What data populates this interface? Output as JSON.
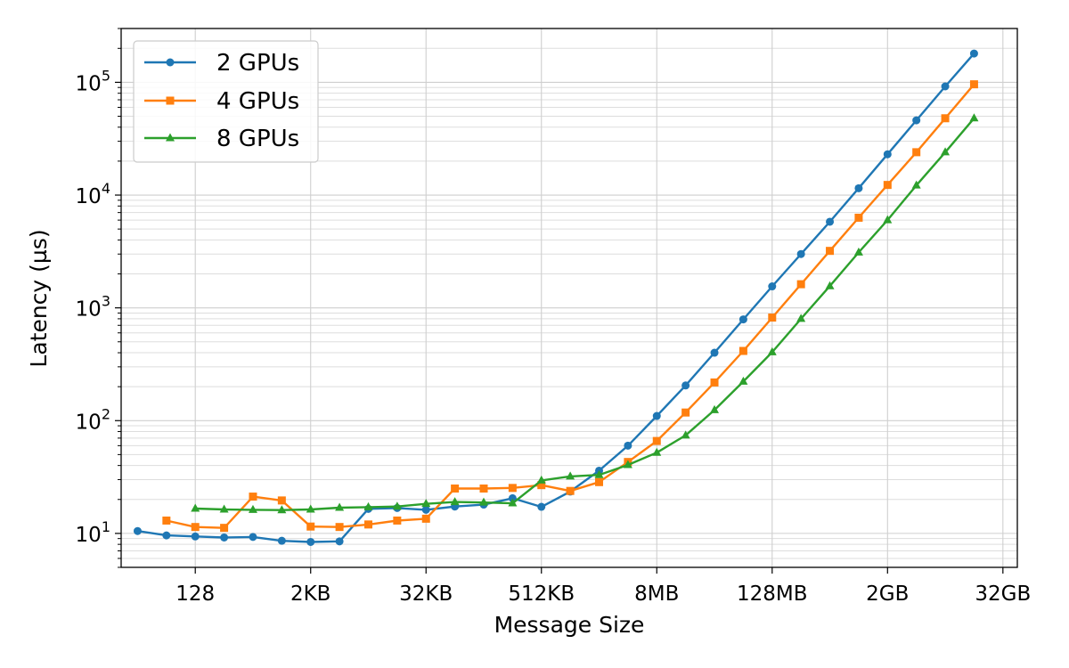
{
  "chart_data": {
    "type": "line",
    "title": "",
    "xlabel": "Message Size",
    "ylabel": "Latency (µs)",
    "x_scale": "log2",
    "y_scale": "log10",
    "x_tick_labels": [
      "128",
      "2KB",
      "32KB",
      "512KB",
      "8MB",
      "128MB",
      "2GB",
      "32GB"
    ],
    "y_tick_labels": [
      {
        "base": "10",
        "exp": "1"
      },
      {
        "base": "10",
        "exp": "2"
      },
      {
        "base": "10",
        "exp": "3"
      },
      {
        "base": "10",
        "exp": "4"
      },
      {
        "base": "10",
        "exp": "5"
      }
    ],
    "ylim": [
      5,
      300000
    ],
    "grid": true,
    "legend_position": "top-left",
    "series": [
      {
        "name": "2 GPUs",
        "color": "#1f77b4",
        "marker": "circle",
        "x": [
          32,
          64,
          128,
          256,
          512,
          1024,
          2048,
          4096,
          8192,
          16384,
          32768,
          65536,
          131072,
          262144,
          524288,
          1048576,
          2097152,
          4194304,
          8388608,
          16777216,
          33554432,
          67108864,
          134217728,
          268435456,
          536870912,
          1073741824,
          2147483648,
          4294967296,
          8589934592,
          17179869184
        ],
        "y": [
          10.5,
          9.6,
          9.4,
          9.2,
          9.3,
          8.6,
          8.4,
          8.5,
          16.5,
          16.8,
          16.2,
          17.3,
          18.0,
          20.5,
          17.2,
          23.5,
          36,
          60,
          110,
          205,
          400,
          790,
          1550,
          3000,
          5800,
          11500,
          23000,
          46000,
          92000,
          180000
        ]
      },
      {
        "name": "4 GPUs",
        "color": "#ff7f0e",
        "marker": "square",
        "x": [
          64,
          128,
          256,
          512,
          1024,
          2048,
          4096,
          8192,
          16384,
          32768,
          65536,
          131072,
          262144,
          524288,
          1048576,
          2097152,
          4194304,
          8388608,
          16777216,
          33554432,
          67108864,
          134217728,
          268435456,
          536870912,
          1073741824,
          2147483648,
          4294967296,
          8589934592,
          17179869184
        ],
        "y": [
          13.0,
          11.4,
          11.2,
          21.2,
          19.6,
          11.5,
          11.4,
          12.0,
          13.0,
          13.5,
          25.0,
          25.0,
          25.3,
          26.8,
          23.8,
          28.5,
          43,
          66,
          118,
          218,
          415,
          820,
          1620,
          3200,
          6300,
          12300,
          24000,
          48000,
          96000
        ]
      },
      {
        "name": "8 GPUs",
        "color": "#2ca02c",
        "marker": "triangle",
        "x": [
          128,
          256,
          512,
          1024,
          2048,
          4096,
          8192,
          16384,
          32768,
          65536,
          131072,
          262144,
          524288,
          1048576,
          2097152,
          4194304,
          8388608,
          16777216,
          33554432,
          67108864,
          134217728,
          268435456,
          536870912,
          1073741824,
          2147483648,
          4294967296,
          8589934592,
          17179869184
        ],
        "y": [
          16.6,
          16.3,
          16.2,
          16.1,
          16.3,
          16.9,
          17.1,
          17.3,
          18.3,
          19.0,
          18.8,
          18.5,
          29.5,
          32.0,
          33.0,
          40.5,
          52,
          74,
          124,
          222,
          405,
          800,
          1560,
          3100,
          6000,
          12200,
          24000,
          48000
        ]
      }
    ]
  }
}
